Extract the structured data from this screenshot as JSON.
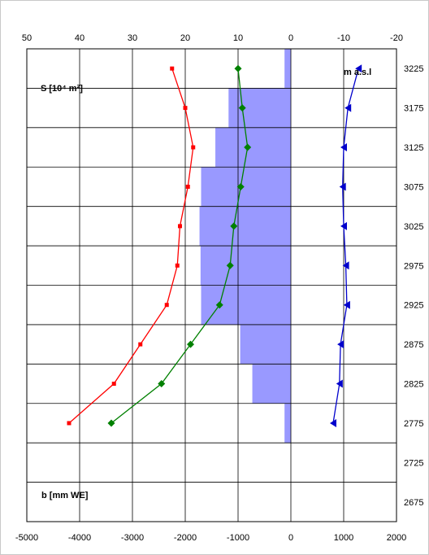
{
  "chart_data": {
    "type": "line",
    "title": "",
    "y_unit_label": "m a.s.l",
    "area_label": "S [10⁴ m²]",
    "balance_label": "b [mm WE]",
    "top_axis_ticks": [
      "50",
      "40",
      "30",
      "20",
      "10",
      "0",
      "-10",
      "-20"
    ],
    "bottom_axis_ticks": [
      "-5000",
      "-4000",
      "-3000",
      "-2000",
      "-1000",
      "0",
      "1000",
      "2000"
    ],
    "right_axis_ticks": [
      "3225",
      "3175",
      "3125",
      "3075",
      "3025",
      "2975",
      "2925",
      "2875",
      "2825",
      "2775",
      "2725",
      "2675"
    ],
    "xlim_bottom": [
      -5000,
      2000
    ],
    "xlim_top": [
      50,
      -20
    ],
    "ylim": [
      2650,
      3250
    ],
    "grid": true,
    "colors": {
      "area": "#9999ff",
      "red": "#ff0000",
      "green": "#008000",
      "blue": "#0000cc"
    },
    "area_series": {
      "name": "S [10⁴ m²]",
      "elevation": [
        3225,
        3175,
        3125,
        3075,
        3025,
        2975,
        2925,
        2875,
        2825,
        2775
      ],
      "values": [
        1.2,
        11.8,
        14.3,
        17.0,
        17.3,
        17.1,
        17.0,
        9.6,
        7.3,
        1.2
      ]
    },
    "series": [
      {
        "color": "red",
        "marker": "square",
        "elevation": [
          3225,
          3175,
          3125,
          3075,
          3025,
          2975,
          2925,
          2875,
          2825,
          2775
        ],
        "values": [
          -2250,
          -2000,
          -1850,
          -1950,
          -2100,
          -2150,
          -2350,
          -2850,
          -3350,
          -4200
        ]
      },
      {
        "color": "green",
        "marker": "diamond",
        "elevation": [
          3225,
          3175,
          3125,
          3075,
          3025,
          2975,
          2925,
          2875,
          2825,
          2775
        ],
        "values": [
          -1000,
          -920,
          -820,
          -950,
          -1080,
          -1150,
          -1350,
          -1900,
          -2450,
          -3400
        ]
      },
      {
        "color": "blue",
        "marker": "triangle",
        "elevation": [
          3225,
          3175,
          3125,
          3075,
          3025,
          2975,
          2925,
          2875,
          2825,
          2775
        ],
        "values": [
          1280,
          1080,
          1000,
          980,
          1000,
          1040,
          1060,
          940,
          920,
          800
        ]
      }
    ]
  }
}
